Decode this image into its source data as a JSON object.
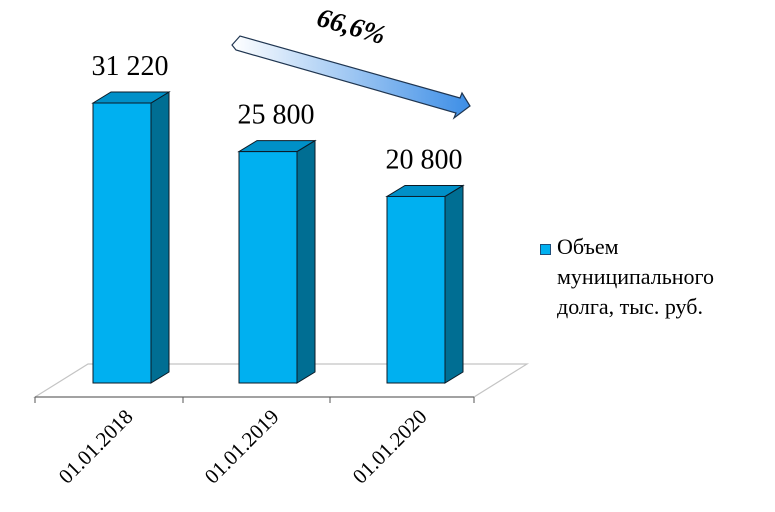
{
  "chart_data": {
    "type": "bar",
    "categories": [
      "01.01.2018",
      "01.01.2019",
      "01.01.2020"
    ],
    "series": [
      {
        "name": "Объем муниципального долга, тыс. руб.",
        "values": [
          31220,
          25800,
          20800
        ]
      }
    ],
    "data_labels": [
      "31 220",
      "25 800",
      "20 800"
    ],
    "ylim": [
      0,
      31220
    ],
    "legend_position": "right",
    "grid": false,
    "annotation": "66,6%",
    "colors": {
      "bar_front": "#00b0f0",
      "bar_side": "#006e93",
      "bar_top": "#0090c8",
      "outline": "#0b1a26"
    }
  }
}
